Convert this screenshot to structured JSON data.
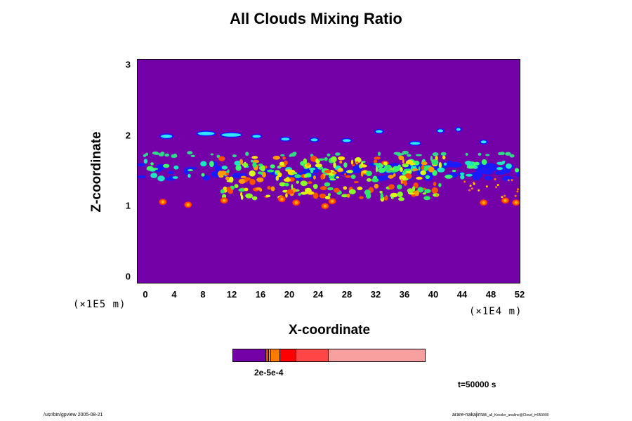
{
  "chart_data": {
    "type": "heatmap",
    "title": "All Clouds Mixing Ratio",
    "xlabel": "X-coordinate",
    "ylabel": "Z-coordinate",
    "x_ticks": [
      "0",
      "4",
      "8",
      "12",
      "16",
      "20",
      "24",
      "28",
      "32",
      "36",
      "40",
      "44",
      "48",
      "52"
    ],
    "y_ticks": [
      "0",
      "1",
      "2",
      "3"
    ],
    "xlim": [
      -1,
      52
    ],
    "ylim": [
      -0.1,
      3.1
    ],
    "x_unit": "(×1E4 m)",
    "y_unit": "(×1E5 m)",
    "background_color": "#7400a8",
    "colorbar": {
      "label": "2e-5e-4",
      "colors": [
        "#7400a8",
        "#f5a000",
        "#ff7a00",
        "#ff0000",
        "#ff4545",
        "#f8a0a0"
      ]
    },
    "time_label": "t=50000 s"
  },
  "footer": {
    "left": "/usr/bin/gpview 2005-08-21",
    "right_main": "arare-nakajima",
    "right_small": "5_all_Kessler_analine@Cloud_t=050000"
  }
}
